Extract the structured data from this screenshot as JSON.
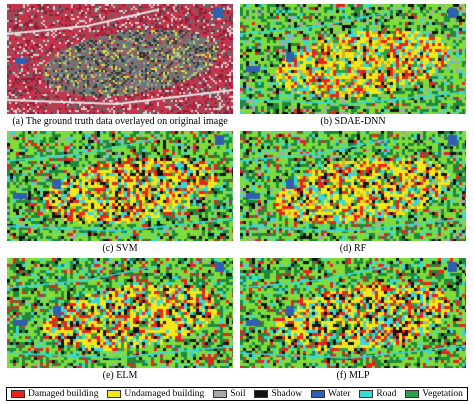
{
  "panels": [
    {
      "caption": "(a) The ground truth data overlayed on original image",
      "style": "original"
    },
    {
      "caption": "(b) SDAE-DNN",
      "style": "classified",
      "noise": 0.1
    },
    {
      "caption": "(c) SVM",
      "style": "classified",
      "noise": 0.22
    },
    {
      "caption": "(d) RF",
      "style": "classified",
      "noise": 0.18
    },
    {
      "caption": "(e) ELM",
      "style": "classified",
      "noise": 0.24
    },
    {
      "caption": "(f) MLP",
      "style": "classified",
      "noise": 0.3
    }
  ],
  "legend": [
    {
      "label": "Damaged building",
      "color": "#e8231f"
    },
    {
      "label": "Undamaged building",
      "color": "#f2e81a"
    },
    {
      "label": "Soil",
      "color": "#a8a8a8"
    },
    {
      "label": "Shadow",
      "color": "#111111"
    },
    {
      "label": "Water",
      "color": "#2f5fb0"
    },
    {
      "label": "Road",
      "color": "#39d9d9"
    },
    {
      "label": "Vegetation",
      "color": "#2aa14a"
    }
  ],
  "colors": {
    "veg_light": "#7fdc3a",
    "veg_dark": "#1f8a3c",
    "original_red": "#c8324a",
    "original_urban": "#6a7a78"
  }
}
